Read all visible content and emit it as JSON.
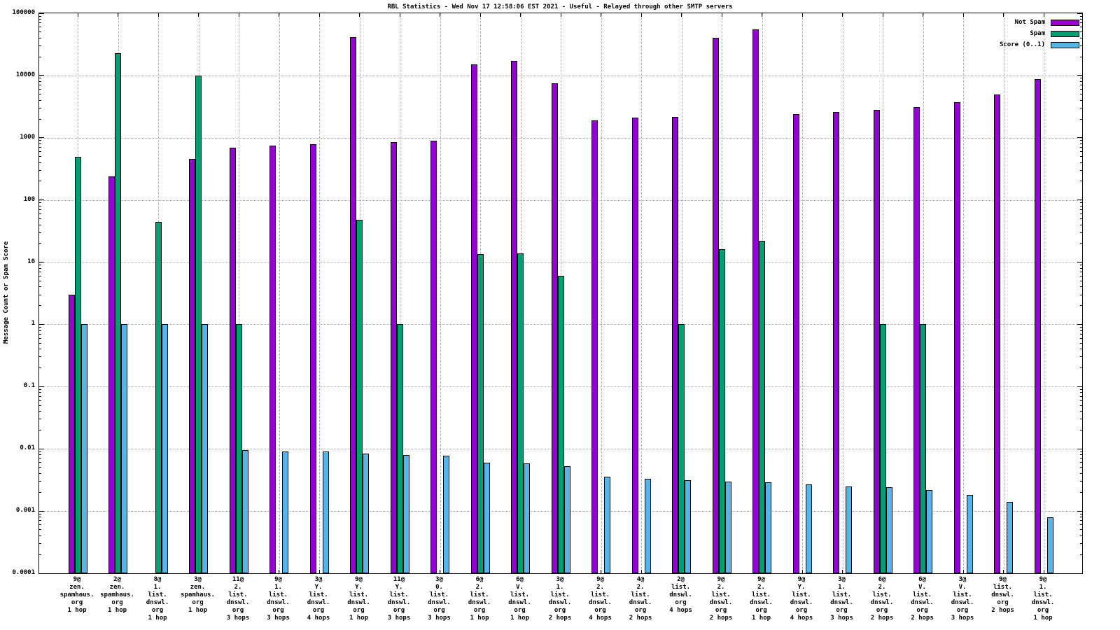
{
  "title": "RBL Statistics - Wed Nov 17 12:58:06 EST 2021 - Useful - Relayed through other SMTP servers",
  "ylabel": "Message Count or Spam Score",
  "colors": {
    "not_spam": "#9400d3",
    "spam": "#009e73",
    "score": "#56b4e9"
  },
  "chart_data": {
    "type": "bar",
    "y_scale": "log",
    "ylim": [
      0.0001,
      100000
    ],
    "grid": true,
    "legend_position": "top-right",
    "ytick_labels": [
      "100000",
      "10000",
      "1000",
      "100",
      "10",
      "1",
      "0.1",
      "0.01",
      "0.001",
      "0.0001"
    ],
    "yticks": [
      100000,
      10000,
      1000,
      100,
      10,
      1,
      0.1,
      0.01,
      0.001,
      0.0001
    ],
    "categories": [
      [
        "9@",
        "zen.",
        "spamhaus.",
        "org",
        "1 hop"
      ],
      [
        "2@",
        "zen.",
        "spamhaus.",
        "org",
        "1 hop"
      ],
      [
        "8@",
        "1.",
        "list.",
        "dnswl.",
        "org",
        "1 hop"
      ],
      [
        "3@",
        "zen.",
        "spamhaus.",
        "org",
        "1 hop"
      ],
      [
        "11@",
        "2.",
        "list.",
        "dnswl.",
        "org",
        "3 hops"
      ],
      [
        "9@",
        "1.",
        "list.",
        "dnswl.",
        "org",
        "3 hops"
      ],
      [
        "3@",
        "Y.",
        "list.",
        "dnswl.",
        "org",
        "4 hops"
      ],
      [
        "9@",
        "Y.",
        "list.",
        "dnswl.",
        "org",
        "1 hop"
      ],
      [
        "11@",
        "Y.",
        "list.",
        "dnswl.",
        "org",
        "3 hops"
      ],
      [
        "3@",
        "0.",
        "list.",
        "dnswl.",
        "org",
        "3 hops"
      ],
      [
        "6@",
        "2.",
        "list.",
        "dnswl.",
        "org",
        "1 hop"
      ],
      [
        "6@",
        "V.",
        "list.",
        "dnswl.",
        "org",
        "1 hop"
      ],
      [
        "3@",
        "1.",
        "list.",
        "dnswl.",
        "org",
        "2 hops"
      ],
      [
        "9@",
        "2.",
        "list.",
        "dnswl.",
        "org",
        "4 hops"
      ],
      [
        "4@",
        "2.",
        "list.",
        "dnswl.",
        "org",
        "2 hops"
      ],
      [
        "2@",
        "list.",
        "dnswl.",
        "org",
        "4 hops"
      ],
      [
        "9@",
        "2.",
        "list.",
        "dnswl.",
        "org",
        "2 hops"
      ],
      [
        "9@",
        "2.",
        "list.",
        "dnswl.",
        "org",
        "1 hop"
      ],
      [
        "9@",
        "Y.",
        "list.",
        "dnswl.",
        "org",
        "4 hops"
      ],
      [
        "3@",
        "1.",
        "list.",
        "dnswl.",
        "org",
        "3 hops"
      ],
      [
        "6@",
        "2.",
        "list.",
        "dnswl.",
        "org",
        "2 hops"
      ],
      [
        "6@",
        "V.",
        "list.",
        "dnswl.",
        "org",
        "2 hops"
      ],
      [
        "3@",
        "V.",
        "list.",
        "dnswl.",
        "org",
        "3 hops"
      ],
      [
        "9@",
        "list.",
        "dnswl.",
        "org",
        "2 hops"
      ],
      [
        "9@",
        "1.",
        "list.",
        "dnswl.",
        "org",
        "1 hop"
      ]
    ],
    "series": [
      {
        "name": "Not Spam",
        "color": "#9400d3",
        "values": [
          3,
          240,
          null,
          460,
          700,
          750,
          780,
          42000,
          850,
          890,
          15000,
          17000,
          7500,
          1900,
          2100,
          2150,
          40000,
          55000,
          2400,
          2600,
          2800,
          3100,
          3700,
          5000,
          8800
        ]
      },
      {
        "name": "Spam",
        "color": "#009e73",
        "values": [
          500,
          23000,
          45,
          10000,
          1,
          null,
          null,
          48,
          1,
          null,
          13.5,
          14,
          6,
          null,
          null,
          1,
          16,
          22,
          null,
          null,
          1,
          1,
          null,
          null,
          null
        ]
      },
      {
        "name": "Score (0..1)",
        "color": "#56b4e9",
        "values": [
          1,
          1,
          1,
          1,
          0.0095,
          0.009,
          0.009,
          0.0085,
          0.008,
          0.0078,
          0.006,
          0.0058,
          0.0053,
          0.0036,
          0.0033,
          0.0031,
          0.003,
          0.0029,
          0.0027,
          0.0025,
          0.0024,
          0.0022,
          0.0018,
          0.0014,
          0.0008
        ]
      }
    ]
  }
}
